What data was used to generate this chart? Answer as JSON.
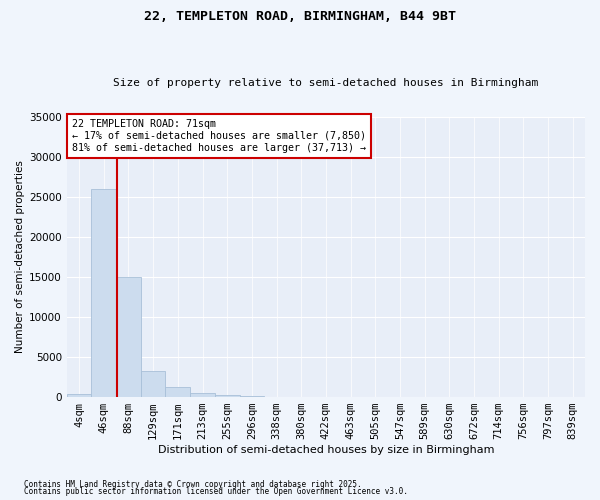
{
  "title1": "22, TEMPLETON ROAD, BIRMINGHAM, B44 9BT",
  "title2": "Size of property relative to semi-detached houses in Birmingham",
  "xlabel": "Distribution of semi-detached houses by size in Birmingham",
  "ylabel": "Number of semi-detached properties",
  "bar_labels": [
    "4sqm",
    "46sqm",
    "88sqm",
    "129sqm",
    "171sqm",
    "213sqm",
    "255sqm",
    "296sqm",
    "338sqm",
    "380sqm",
    "422sqm",
    "463sqm",
    "505sqm",
    "547sqm",
    "589sqm",
    "630sqm",
    "672sqm",
    "714sqm",
    "756sqm",
    "797sqm",
    "839sqm"
  ],
  "bar_values": [
    400,
    26000,
    15000,
    3200,
    1200,
    450,
    250,
    100,
    0,
    0,
    0,
    0,
    0,
    0,
    0,
    0,
    0,
    0,
    0,
    0,
    0
  ],
  "bar_color": "#ccdcee",
  "bar_edgecolor": "#a8c0d8",
  "ylim": [
    0,
    35000
  ],
  "yticks": [
    0,
    5000,
    10000,
    15000,
    20000,
    25000,
    30000,
    35000
  ],
  "property_line_x": 1.55,
  "property_line_color": "#cc0000",
  "annotation_title": "22 TEMPLETON ROAD: 71sqm",
  "annotation_line1": "← 17% of semi-detached houses are smaller (7,850)",
  "annotation_line2": "81% of semi-detached houses are larger (37,713) →",
  "annotation_box_color": "#ffffff",
  "annotation_box_edgecolor": "#cc0000",
  "footer1": "Contains HM Land Registry data © Crown copyright and database right 2025.",
  "footer2": "Contains public sector information licensed under the Open Government Licence v3.0.",
  "bg_color": "#f0f5fc",
  "plot_bg_color": "#e8eef8"
}
